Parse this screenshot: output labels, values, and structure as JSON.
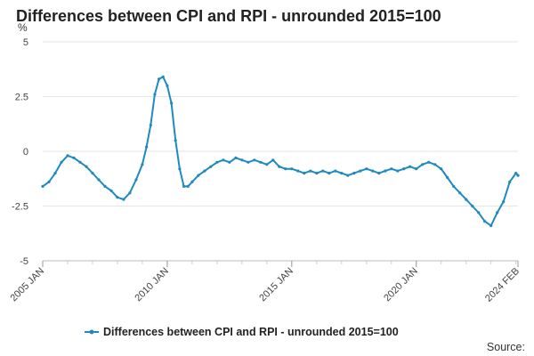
{
  "chart_data": {
    "type": "line",
    "title": "Differences between CPI and RPI - unrounded 2015=100",
    "unit_label": "%",
    "ylim": [
      -5,
      5
    ],
    "yticks": [
      5,
      2.5,
      0,
      -2.5,
      -5
    ],
    "ytick_labels": [
      "5",
      "2.5",
      "0",
      "-2.5",
      "-5"
    ],
    "xlim": [
      "2005-01",
      "2024-02"
    ],
    "xtick_labels": [
      {
        "at": "2005-01",
        "label": "2005 JAN"
      },
      {
        "at": "2010-01",
        "label": "2010 JAN"
      },
      {
        "at": "2015-01",
        "label": "2015 JAN"
      },
      {
        "at": "2020-01",
        "label": "2020 JAN"
      },
      {
        "at": "2024-02",
        "label": "2024 FEB"
      }
    ],
    "grid": true,
    "legend_position": "bottom",
    "series": [
      {
        "name": "Differences between CPI and RPI - unrounded 2015=100",
        "color": "#1f8ac0",
        "points": [
          [
            "2005-01",
            -1.6
          ],
          [
            "2005-04",
            -1.4
          ],
          [
            "2005-07",
            -1.0
          ],
          [
            "2005-10",
            -0.5
          ],
          [
            "2006-01",
            -0.2
          ],
          [
            "2006-04",
            -0.3
          ],
          [
            "2006-07",
            -0.5
          ],
          [
            "2006-10",
            -0.7
          ],
          [
            "2007-01",
            -1.0
          ],
          [
            "2007-04",
            -1.3
          ],
          [
            "2007-07",
            -1.6
          ],
          [
            "2007-10",
            -1.8
          ],
          [
            "2008-01",
            -2.1
          ],
          [
            "2008-04",
            -2.2
          ],
          [
            "2008-07",
            -1.9
          ],
          [
            "2008-10",
            -1.3
          ],
          [
            "2009-01",
            -0.6
          ],
          [
            "2009-03",
            0.2
          ],
          [
            "2009-05",
            1.2
          ],
          [
            "2009-07",
            2.6
          ],
          [
            "2009-09",
            3.3
          ],
          [
            "2009-11",
            3.4
          ],
          [
            "2010-01",
            3.0
          ],
          [
            "2010-03",
            2.2
          ],
          [
            "2010-05",
            0.5
          ],
          [
            "2010-07",
            -0.8
          ],
          [
            "2010-09",
            -1.6
          ],
          [
            "2010-11",
            -1.6
          ],
          [
            "2011-01",
            -1.4
          ],
          [
            "2011-04",
            -1.1
          ],
          [
            "2011-07",
            -0.9
          ],
          [
            "2011-10",
            -0.7
          ],
          [
            "2012-01",
            -0.5
          ],
          [
            "2012-04",
            -0.4
          ],
          [
            "2012-07",
            -0.5
          ],
          [
            "2012-10",
            -0.3
          ],
          [
            "2013-01",
            -0.4
          ],
          [
            "2013-04",
            -0.5
          ],
          [
            "2013-07",
            -0.4
          ],
          [
            "2013-10",
            -0.5
          ],
          [
            "2014-01",
            -0.6
          ],
          [
            "2014-04",
            -0.4
          ],
          [
            "2014-07",
            -0.7
          ],
          [
            "2014-10",
            -0.8
          ],
          [
            "2015-01",
            -0.8
          ],
          [
            "2015-04",
            -0.9
          ],
          [
            "2015-07",
            -1.0
          ],
          [
            "2015-10",
            -0.9
          ],
          [
            "2016-01",
            -1.0
          ],
          [
            "2016-04",
            -0.9
          ],
          [
            "2016-07",
            -1.0
          ],
          [
            "2016-10",
            -0.9
          ],
          [
            "2017-01",
            -1.0
          ],
          [
            "2017-04",
            -1.1
          ],
          [
            "2017-07",
            -1.0
          ],
          [
            "2017-10",
            -0.9
          ],
          [
            "2018-01",
            -0.8
          ],
          [
            "2018-04",
            -0.9
          ],
          [
            "2018-07",
            -1.0
          ],
          [
            "2018-10",
            -0.9
          ],
          [
            "2019-01",
            -0.8
          ],
          [
            "2019-04",
            -0.9
          ],
          [
            "2019-07",
            -0.8
          ],
          [
            "2019-10",
            -0.7
          ],
          [
            "2020-01",
            -0.8
          ],
          [
            "2020-04",
            -0.6
          ],
          [
            "2020-07",
            -0.5
          ],
          [
            "2020-10",
            -0.6
          ],
          [
            "2021-01",
            -0.8
          ],
          [
            "2021-04",
            -1.2
          ],
          [
            "2021-07",
            -1.6
          ],
          [
            "2021-10",
            -1.9
          ],
          [
            "2022-01",
            -2.2
          ],
          [
            "2022-04",
            -2.5
          ],
          [
            "2022-07",
            -2.8
          ],
          [
            "2022-10",
            -3.2
          ],
          [
            "2023-01",
            -3.4
          ],
          [
            "2023-04",
            -2.8
          ],
          [
            "2023-07",
            -2.3
          ],
          [
            "2023-10",
            -1.4
          ],
          [
            "2024-01",
            -1.0
          ],
          [
            "2024-02",
            -1.1
          ]
        ]
      }
    ],
    "source": "Source:"
  }
}
